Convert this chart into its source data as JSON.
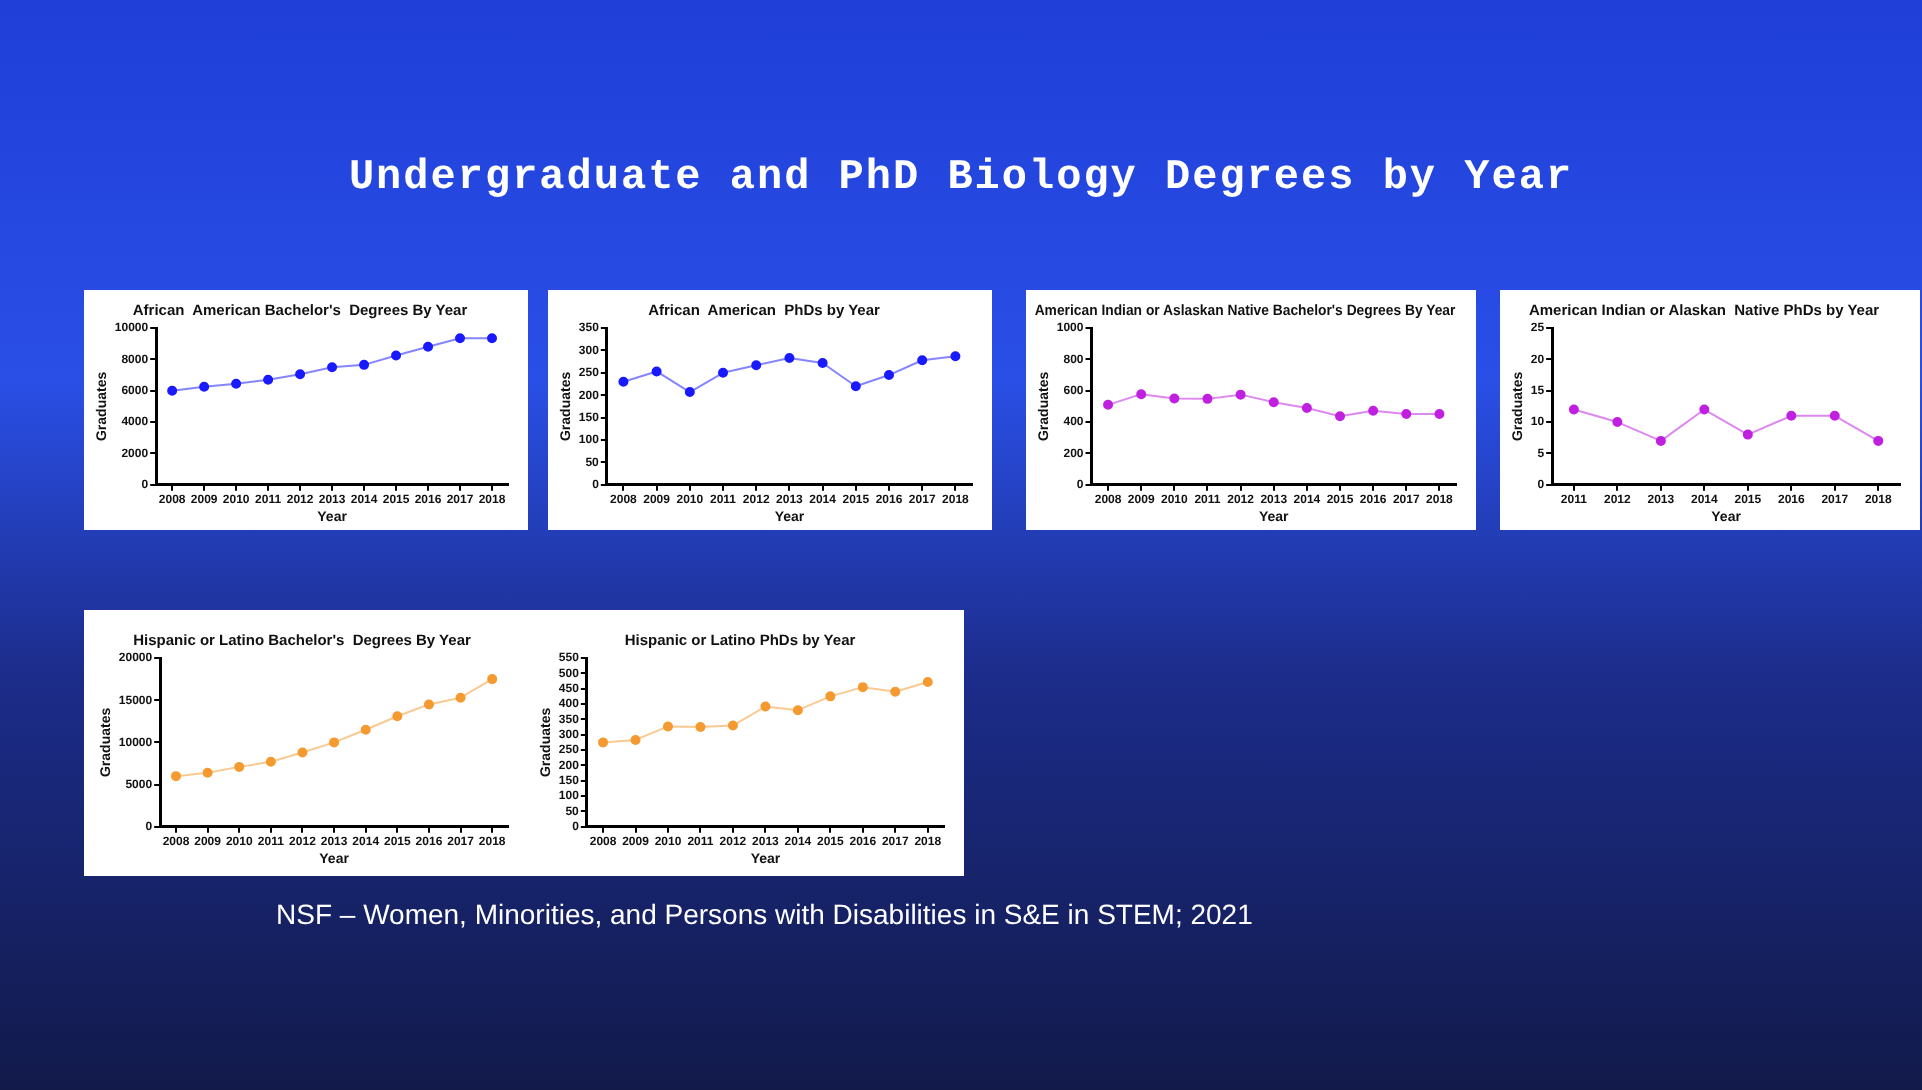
{
  "chart_data": [
    {
      "type": "other",
      "title": "Undergraduate and PhD Biology Degrees by Year",
      "annotations": [
        "NSF – Women, Minorities, and Persons with Disabilities in S&E in STEM; 2021"
      ]
    },
    {
      "type": "line",
      "title": "African  American Bachelor's  Degrees By Year",
      "xlabel": "Year",
      "ylabel": "Graduates",
      "categories": [
        "2008",
        "2009",
        "2010",
        "2011",
        "2012",
        "2013",
        "2014",
        "2015",
        "2016",
        "2017",
        "2018"
      ],
      "series": [
        {
          "color": "#1a1aff",
          "values": [
            6000,
            6250,
            6450,
            6700,
            7050,
            7500,
            7650,
            8250,
            8800,
            9350,
            9350
          ]
        }
      ],
      "ylim": [
        0,
        10000
      ],
      "yticks": [
        0,
        2000,
        4000,
        6000,
        8000,
        10000
      ],
      "grid": false,
      "marker": "circle",
      "line_style": "solid"
    },
    {
      "type": "line",
      "title": "African  American  PhDs by Year",
      "xlabel": "Year",
      "ylabel": "Graduates",
      "categories": [
        "2008",
        "2009",
        "2010",
        "2011",
        "2012",
        "2013",
        "2014",
        "2015",
        "2016",
        "2017",
        "2018"
      ],
      "series": [
        {
          "color": "#1a1aff",
          "values": [
            230,
            253,
            207,
            250,
            267,
            283,
            272,
            220,
            245,
            278,
            287
          ]
        }
      ],
      "ylim": [
        0,
        350
      ],
      "yticks": [
        0,
        50,
        100,
        150,
        200,
        250,
        300,
        350
      ],
      "grid": false,
      "marker": "circle",
      "line_style": "solid"
    },
    {
      "type": "line",
      "title": "American Indian or Aslaskan Native Bachelor's Degrees By Year",
      "xlabel": "Year",
      "ylabel": "Graduates",
      "categories": [
        "2008",
        "2009",
        "2010",
        "2011",
        "2012",
        "2013",
        "2014",
        "2015",
        "2016",
        "2017",
        "2018"
      ],
      "series": [
        {
          "color": "#c020e0",
          "values": [
            510,
            578,
            550,
            548,
            575,
            527,
            490,
            437,
            472,
            452,
            452
          ]
        }
      ],
      "ylim": [
        0,
        1000
      ],
      "yticks": [
        0,
        200,
        400,
        600,
        800,
        1000
      ],
      "grid": false,
      "marker": "circle",
      "line_style": "solid"
    },
    {
      "type": "line",
      "title": "American Indian or Alaskan  Native PhDs by Year",
      "xlabel": "Year",
      "ylabel": "Graduates",
      "categories": [
        "2011",
        "2012",
        "2013",
        "2014",
        "2015",
        "2016",
        "2017",
        "2018"
      ],
      "series": [
        {
          "color": "#c020e0",
          "values": [
            12,
            10,
            7,
            12,
            8,
            11,
            11,
            7
          ]
        }
      ],
      "ylim": [
        0,
        25
      ],
      "yticks": [
        0,
        5,
        10,
        15,
        20,
        25
      ],
      "grid": false,
      "marker": "circle",
      "line_style": "solid"
    },
    {
      "type": "line",
      "title": "Hispanic or Latino Bachelor's  Degrees By Year",
      "xlabel": "Year",
      "ylabel": "Graduates",
      "categories": [
        "2008",
        "2009",
        "2010",
        "2011",
        "2012",
        "2013",
        "2014",
        "2015",
        "2016",
        "2017",
        "2018"
      ],
      "series": [
        {
          "color": "#f59a30",
          "values": [
            6000,
            6400,
            7100,
            7700,
            8800,
            10000,
            11500,
            13100,
            14500,
            15300,
            17500
          ]
        }
      ],
      "ylim": [
        0,
        20000
      ],
      "yticks": [
        0,
        5000,
        10000,
        15000,
        20000
      ],
      "grid": false,
      "marker": "circle",
      "line_style": "solid"
    },
    {
      "type": "line",
      "title": "Hispanic or Latino PhDs by Year",
      "xlabel": "Year",
      "ylabel": "Graduates",
      "categories": [
        "2008",
        "2009",
        "2010",
        "2011",
        "2012",
        "2013",
        "2014",
        "2015",
        "2016",
        "2017",
        "2018"
      ],
      "series": [
        {
          "color": "#f59a30",
          "values": [
            275,
            283,
            327,
            325,
            330,
            392,
            380,
            425,
            455,
            440,
            472
          ]
        }
      ],
      "ylim": [
        0,
        550
      ],
      "yticks": [
        0,
        50,
        100,
        150,
        200,
        250,
        300,
        350,
        400,
        450,
        500,
        550
      ],
      "grid": false,
      "marker": "circle",
      "line_style": "solid"
    }
  ]
}
